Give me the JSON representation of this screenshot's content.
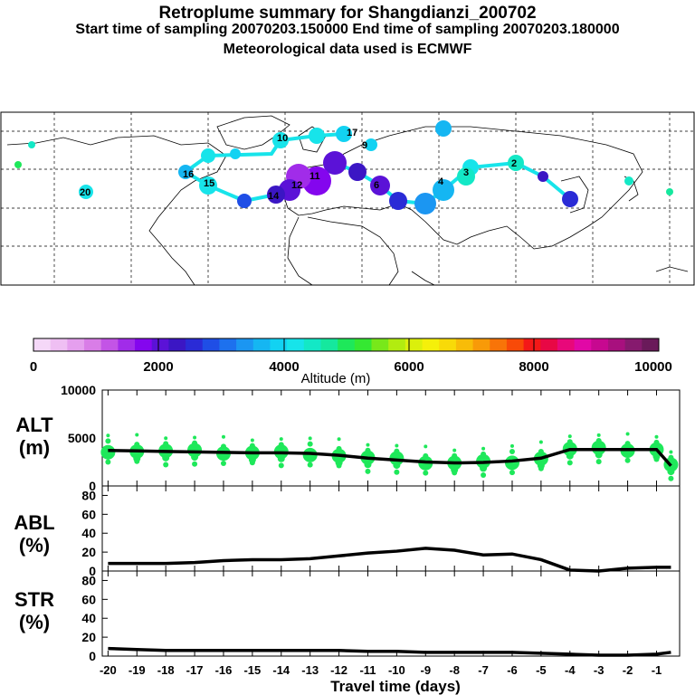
{
  "header": {
    "title": "Retroplume summary for Shangdianzi_200702",
    "sampling_line": "Start time of sampling 20070203.150000     End time of sampling 20070203.180000",
    "met_line": "Meteorological data used is ECMWF"
  },
  "colors": {
    "green": "#1ee85a",
    "black": "#000000",
    "scale": [
      "#f5d8f8",
      "#efbff3",
      "#e59fee",
      "#d97de7",
      "#c354e6",
      "#a12ce9",
      "#8406ee",
      "#5b12d7",
      "#3b16c4",
      "#2a2bd6",
      "#1f4ee6",
      "#1d71ee",
      "#1b96f2",
      "#15b6f2",
      "#12d2f2",
      "#17e4ea",
      "#13e8c6",
      "#15e89e",
      "#1ee85a",
      "#35e832",
      "#78e81a",
      "#b2ec10",
      "#dbf00c",
      "#f5f00a",
      "#f8da08",
      "#f8bc08",
      "#f89a08",
      "#f87408",
      "#f84a08",
      "#f41818",
      "#e80845",
      "#e8087a",
      "#e108a6",
      "#c70890",
      "#a8107e",
      "#861a6e",
      "#6a1a5a"
    ]
  },
  "map": {
    "labels": {
      "twenty_w": "20",
      "sixteen": "16",
      "fifteen": "15",
      "fourteen": "14",
      "twelve": "12",
      "eleven": "11",
      "ten": "10",
      "nine": "9",
      "six": "6",
      "four": "4",
      "three": "3",
      "two": "2",
      "seventeen": "17"
    }
  },
  "colorbar": {
    "tick_labels": [
      "0",
      "2000",
      "4000",
      "6000",
      "8000",
      "10000"
    ],
    "label": "Altitude (m)",
    "min": 0,
    "max": 10000
  },
  "chart_data": [
    {
      "type": "line",
      "name": "ALT",
      "ylabel": "ALT (m)",
      "ylabel_top": "ALT",
      "ylabel_bottom": "(m)",
      "ylim": [
        0,
        10000
      ],
      "yticks": [
        "10000",
        "5000",
        "0"
      ],
      "x": [
        -20,
        -19,
        -18,
        -17,
        -16,
        -15,
        -14,
        -13,
        -12,
        -11,
        -10,
        -9,
        -8,
        -7,
        -6,
        -5,
        -4,
        -3,
        -2,
        -1,
        -0.5
      ],
      "y": [
        3700,
        3650,
        3600,
        3550,
        3500,
        3450,
        3450,
        3400,
        3200,
        2900,
        2700,
        2500,
        2400,
        2450,
        2600,
        2900,
        3800,
        3800,
        3800,
        3800,
        2100
      ],
      "scatter_note": "green circles show plume altitude distribution"
    },
    {
      "type": "line",
      "name": "ABL",
      "ylabel_top": "ABL",
      "ylabel_bottom": "(%)",
      "ylim": [
        0,
        90
      ],
      "yticks": [
        "80",
        "60",
        "40",
        "20",
        "0"
      ],
      "x": [
        -20,
        -19,
        -18,
        -17,
        -16,
        -15,
        -14,
        -13,
        -12,
        -11,
        -10,
        -9,
        -8,
        -7,
        -6,
        -5,
        -4,
        -3,
        -2,
        -1,
        -0.5
      ],
      "y": [
        8,
        8,
        8,
        9,
        11,
        12,
        12,
        13,
        16,
        19,
        21,
        24,
        22,
        17,
        18,
        12,
        1,
        0,
        3,
        4,
        4
      ]
    },
    {
      "type": "line",
      "name": "STR",
      "ylabel_top": "STR",
      "ylabel_bottom": "(%)",
      "ylim": [
        0,
        90
      ],
      "yticks": [
        "80",
        "60",
        "40",
        "20",
        "0"
      ],
      "x": [
        -20,
        -19,
        -18,
        -17,
        -16,
        -15,
        -14,
        -13,
        -12,
        -11,
        -10,
        -9,
        -8,
        -7,
        -6,
        -5,
        -4,
        -3,
        -2,
        -1,
        -0.5
      ],
      "y": [
        8,
        7,
        6,
        6,
        6,
        6,
        6,
        6,
        6,
        5,
        5,
        4,
        4,
        4,
        4,
        3,
        2,
        1,
        1,
        2,
        4
      ]
    }
  ],
  "xaxis": {
    "ticks": [
      "-20",
      "-19",
      "-18",
      "-17",
      "-16",
      "-15",
      "-14",
      "-13",
      "-12",
      "-11",
      "-10",
      "-9",
      "-8",
      "-7",
      "-6",
      "-5",
      "-4",
      "-3",
      "-2",
      "-1"
    ],
    "label": "Travel time (days)"
  }
}
